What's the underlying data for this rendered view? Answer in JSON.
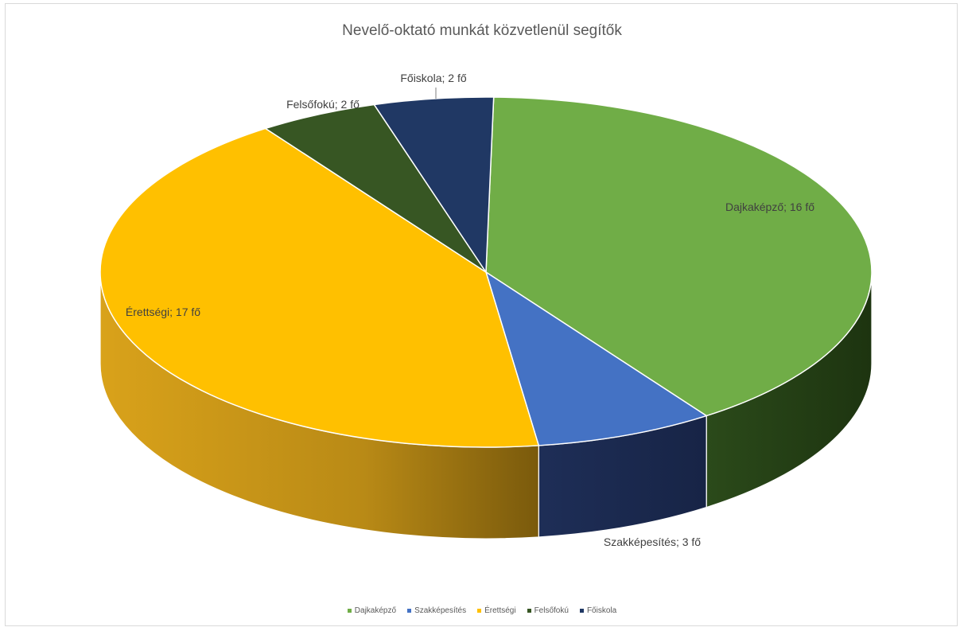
{
  "chart_data": {
    "type": "pie",
    "title": "Nevelő-oktató munkát közvetlenül segítők",
    "categories": [
      "Dajkaképző",
      "Szakképesítés",
      "Érettségi",
      "Felsőfokú",
      "Főiskola"
    ],
    "values": [
      16,
      3,
      17,
      2,
      2
    ],
    "data_labels": [
      "Dajkaképző; 16 fő",
      "Szakképesítés; 3 fő",
      "Érettségi; 17 fő",
      "Felsőfokú; 2 fő",
      "Főiskola; 2 fő"
    ],
    "colors": [
      "#70ad47",
      "#4472c4",
      "#ffc000",
      "#375623",
      "#203864"
    ],
    "legend_position": "bottom",
    "style": "3d-pie"
  }
}
